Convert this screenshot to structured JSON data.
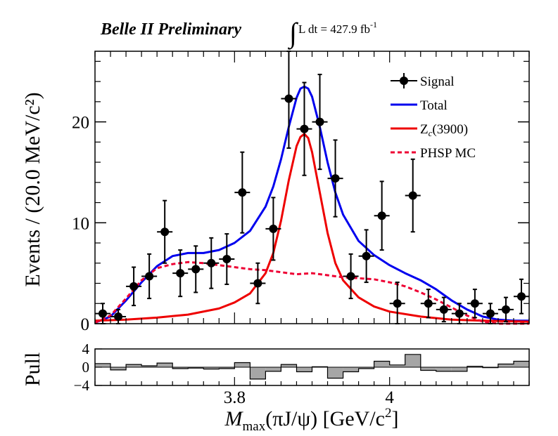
{
  "chart_data": [
    {
      "type": "scatter",
      "header": {
        "experiment": "Belle II Preliminary",
        "luminosity_label": "∫L dt = 427.9 fb",
        "luminosity_sup": "-1"
      },
      "xlabel": {
        "main": "M",
        "sub": "max",
        "paren": "(πJ/ψ)",
        "unit": "[GeV/c",
        "unit_sup": "2",
        "unit_close": "]"
      },
      "ylabel": "Events / (20.0 MeV/c²)",
      "xlim": [
        3.62,
        4.18
      ],
      "ylim": [
        0,
        27
      ],
      "x_ticks": [
        3.8,
        4.0
      ],
      "x_tick_labels": [
        "3.8",
        "4"
      ],
      "y_ticks": [
        0,
        10,
        20
      ],
      "y_tick_labels": [
        "0",
        "10",
        "20"
      ],
      "legend": {
        "position": "top-right",
        "entries": [
          {
            "label": "Signal",
            "color": "#000000",
            "style": "marker"
          },
          {
            "label": "Total",
            "color": "#0000ee",
            "style": "solid"
          },
          {
            "label": "Z",
            "label_sub": "c",
            "label_rest": "(3900)",
            "color": "#ee0000",
            "style": "solid"
          },
          {
            "label": "PHSP MC",
            "color": "#ee0033",
            "style": "dashed"
          }
        ]
      },
      "signal": {
        "name": "Signal",
        "x_halfwidth": 0.01,
        "points": [
          {
            "x": 3.63,
            "y": 1.0,
            "err": 1.0
          },
          {
            "x": 3.65,
            "y": 0.7,
            "err": 0.7
          },
          {
            "x": 3.67,
            "y": 3.7,
            "err": 1.9
          },
          {
            "x": 3.69,
            "y": 4.7,
            "err": 2.2
          },
          {
            "x": 3.71,
            "y": 9.1,
            "err": 3.1
          },
          {
            "x": 3.73,
            "y": 5.0,
            "err": 2.3
          },
          {
            "x": 3.75,
            "y": 5.4,
            "err": 2.3
          },
          {
            "x": 3.77,
            "y": 6.0,
            "err": 2.5
          },
          {
            "x": 3.79,
            "y": 6.4,
            "err": 2.5
          },
          {
            "x": 3.81,
            "y": 13.0,
            "err": 4.0
          },
          {
            "x": 3.83,
            "y": 4.0,
            "err": 2.0
          },
          {
            "x": 3.85,
            "y": 9.4,
            "err": 3.1
          },
          {
            "x": 3.87,
            "y": 22.3,
            "err": 4.9
          },
          {
            "x": 3.89,
            "y": 19.3,
            "err": 4.6
          },
          {
            "x": 3.91,
            "y": 20.0,
            "err": 4.7
          },
          {
            "x": 3.93,
            "y": 14.4,
            "err": 3.8
          },
          {
            "x": 3.95,
            "y": 4.7,
            "err": 2.2
          },
          {
            "x": 3.97,
            "y": 6.7,
            "err": 2.6
          },
          {
            "x": 3.99,
            "y": 10.7,
            "err": 3.4
          },
          {
            "x": 4.01,
            "y": 2.0,
            "err": 2.1
          },
          {
            "x": 4.03,
            "y": 12.7,
            "err": 3.6
          },
          {
            "x": 4.05,
            "y": 2.0,
            "err": 1.4
          },
          {
            "x": 4.07,
            "y": 1.4,
            "err": 1.2
          },
          {
            "x": 4.09,
            "y": 1.0,
            "err": 1.0
          },
          {
            "x": 4.11,
            "y": 2.0,
            "err": 1.4
          },
          {
            "x": 4.13,
            "y": 1.0,
            "err": 1.0
          },
          {
            "x": 4.15,
            "y": 1.4,
            "err": 1.2
          },
          {
            "x": 4.17,
            "y": 2.7,
            "err": 1.7
          }
        ]
      },
      "curves": [
        {
          "name": "Total",
          "color": "#0000ee",
          "dash": "none",
          "x": [
            3.62,
            3.64,
            3.66,
            3.68,
            3.7,
            3.72,
            3.74,
            3.76,
            3.78,
            3.8,
            3.82,
            3.84,
            3.85,
            3.86,
            3.87,
            3.88,
            3.885,
            3.89,
            3.895,
            3.9,
            3.91,
            3.92,
            3.93,
            3.94,
            3.96,
            3.98,
            4.0,
            4.02,
            4.04,
            4.06,
            4.08,
            4.1,
            4.12,
            4.14,
            4.16,
            4.18
          ],
          "y": [
            0.1,
            0.7,
            2.3,
            4.1,
            5.7,
            6.7,
            7.0,
            7.0,
            7.3,
            8.0,
            9.2,
            11.6,
            13.6,
            16.3,
            19.5,
            22.4,
            23.3,
            23.5,
            23.3,
            22.5,
            19.5,
            16.0,
            13.0,
            10.8,
            8.2,
            6.8,
            5.8,
            5.0,
            4.3,
            3.4,
            2.3,
            1.4,
            0.7,
            0.4,
            0.3,
            0.3
          ]
        },
        {
          "name": "Zc(3900)",
          "color": "#ee0000",
          "dash": "none",
          "x": [
            3.62,
            3.66,
            3.7,
            3.74,
            3.78,
            3.8,
            3.82,
            3.84,
            3.85,
            3.86,
            3.87,
            3.88,
            3.885,
            3.89,
            3.895,
            3.9,
            3.91,
            3.92,
            3.93,
            3.94,
            3.96,
            3.98,
            4.0,
            4.04,
            4.08,
            4.12,
            4.18
          ],
          "y": [
            0.3,
            0.4,
            0.6,
            0.9,
            1.5,
            2.1,
            3.0,
            5.0,
            7.0,
            10.2,
            14.2,
            17.6,
            18.5,
            18.8,
            18.4,
            17.0,
            13.0,
            9.0,
            6.0,
            4.3,
            2.6,
            1.7,
            1.2,
            0.7,
            0.4,
            0.3,
            0.2
          ]
        },
        {
          "name": "PHSP MC",
          "color": "#ee0033",
          "dash": "6,4",
          "x": [
            3.62,
            3.64,
            3.66,
            3.68,
            3.7,
            3.72,
            3.74,
            3.76,
            3.78,
            3.8,
            3.82,
            3.84,
            3.86,
            3.88,
            3.9,
            3.92,
            3.94,
            3.96,
            3.98,
            4.0,
            4.02,
            4.04,
            4.06,
            4.08,
            4.1,
            4.12,
            4.14,
            4.16,
            4.18
          ],
          "y": [
            0.1,
            0.8,
            2.5,
            4.3,
            5.5,
            5.9,
            6.1,
            6.0,
            5.8,
            5.6,
            5.4,
            5.3,
            5.1,
            4.9,
            5.0,
            4.8,
            4.6,
            4.5,
            4.4,
            4.1,
            3.7,
            3.1,
            2.4,
            1.6,
            0.8,
            0.2,
            0.0,
            0.0,
            0.0
          ]
        }
      ]
    },
    {
      "type": "bar",
      "ylabel": "Pull",
      "ylim": [
        -4,
        4
      ],
      "y_ticks": [
        -4,
        0,
        4
      ],
      "y_tick_labels": [
        "−4",
        "0",
        "4"
      ],
      "bar_color": "#a6a6a6",
      "x_centers": [
        3.63,
        3.65,
        3.67,
        3.69,
        3.71,
        3.73,
        3.75,
        3.77,
        3.79,
        3.81,
        3.83,
        3.85,
        3.87,
        3.89,
        3.91,
        3.93,
        3.95,
        3.97,
        3.99,
        4.01,
        4.03,
        4.05,
        4.07,
        4.09,
        4.11,
        4.13,
        4.15,
        4.17
      ],
      "values": [
        0.8,
        -0.6,
        0.6,
        0.3,
        0.9,
        -0.3,
        -0.2,
        -0.4,
        -0.3,
        1.0,
        -2.6,
        -0.9,
        0.6,
        -1.0,
        0.1,
        -2.4,
        -1.0,
        -0.3,
        1.3,
        0.5,
        2.8,
        -0.7,
        -0.9,
        -0.9,
        0.2,
        -0.1,
        0.7,
        1.3
      ]
    }
  ]
}
